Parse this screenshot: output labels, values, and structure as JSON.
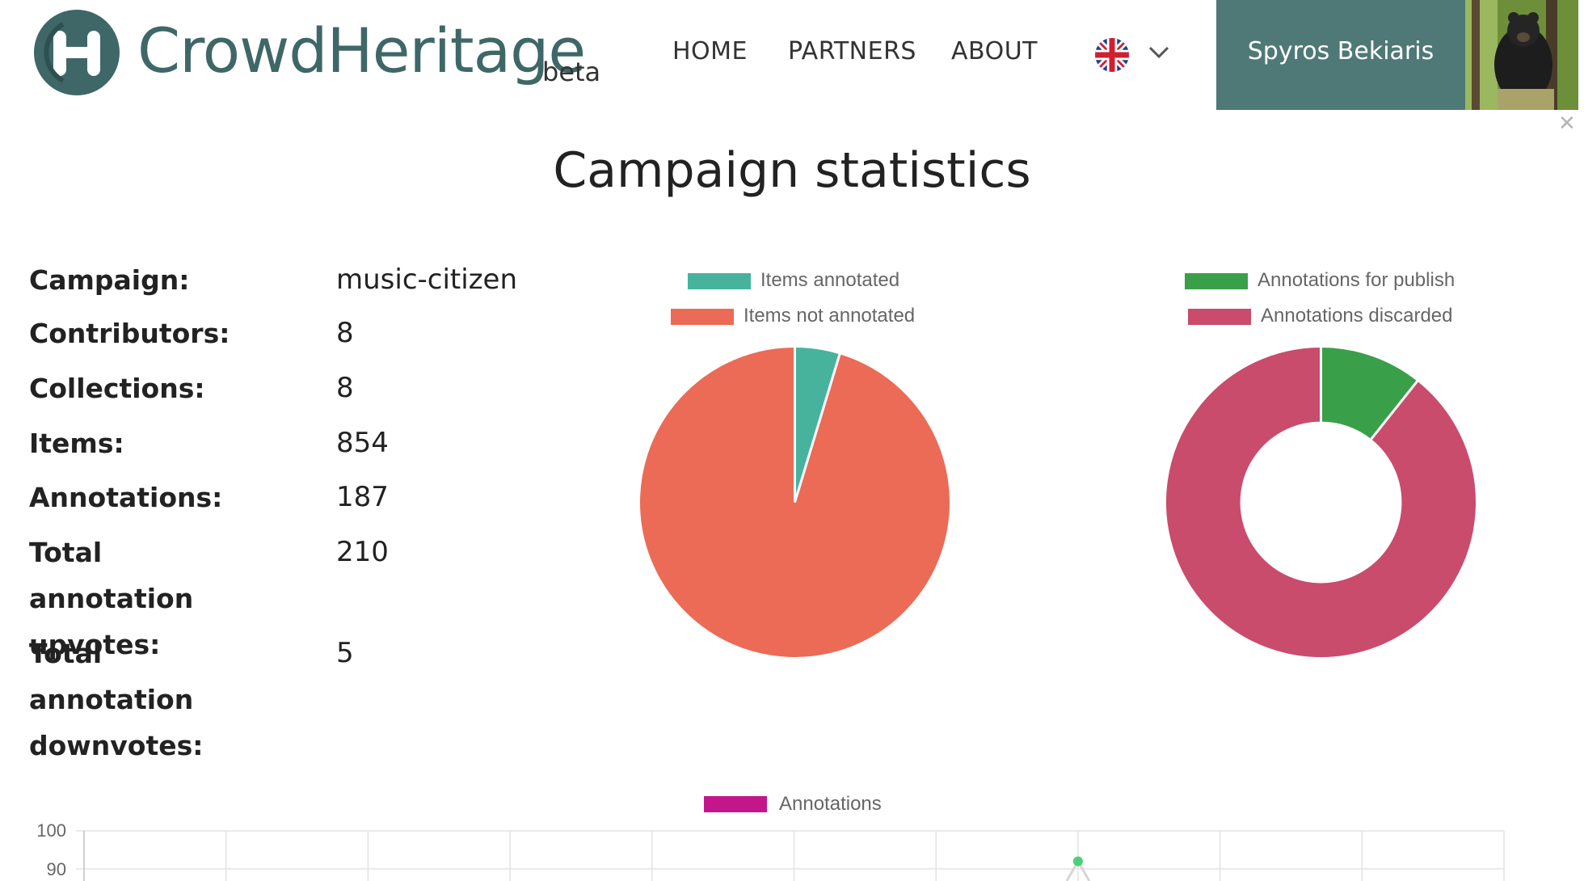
{
  "header": {
    "brand": "CrowdHeritage",
    "beta": "beta",
    "nav": [
      {
        "label": "HOME"
      },
      {
        "label": "PARTNERS"
      },
      {
        "label": "ABOUT"
      }
    ],
    "language_icon": "uk-flag-icon",
    "user_name": "Spyros Bekiaris"
  },
  "page_title": "Campaign statistics",
  "stats": [
    {
      "label": "Campaign:",
      "value": "music-citizen"
    },
    {
      "label": "Contributors:",
      "value": "8"
    },
    {
      "label": "Collections:",
      "value": "8"
    },
    {
      "label": "Items:",
      "value": "854"
    },
    {
      "label": "Annotations:",
      "value": "187"
    },
    {
      "label": "Total annotation upvotes:",
      "value": "210"
    },
    {
      "label": "Total annotation downvotes:",
      "value": "5"
    }
  ],
  "colors": {
    "brand": "#3f6767",
    "user_box": "#4f7977",
    "teal": "#47b39d",
    "salmon": "#eb6b56",
    "green": "#3a9f49",
    "crimson": "#c94c6c",
    "magenta": "#c2168a"
  },
  "chart_data": [
    {
      "type": "pie",
      "legend": [
        "Items annotated",
        "Items not annotated"
      ],
      "colors": [
        "#47b39d",
        "#eb6b56"
      ],
      "values": [
        40,
        814
      ]
    },
    {
      "type": "doughnut",
      "legend": [
        "Annotations for publish",
        "Annotations discarded"
      ],
      "colors": [
        "#3a9f49",
        "#c94c6c"
      ],
      "values": [
        20,
        167
      ]
    },
    {
      "type": "line",
      "legend": [
        "Annotations"
      ],
      "series_color": "#c2168a",
      "y_ticks": [
        100,
        90
      ],
      "visible_point": {
        "index": 7,
        "y": 92
      }
    }
  ]
}
